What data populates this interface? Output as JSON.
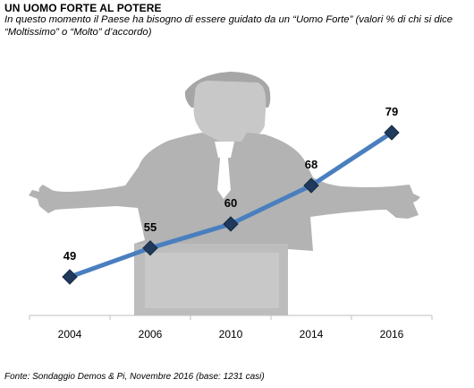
{
  "header": {
    "title": "UN UOMO FORTE AL POTERE",
    "subtitle": "In questo momento il Paese ha bisogno di essere guidato da un “Uomo Forte” (valori % di chi si dice “Moltissimo” o “Molto” d’accordo)"
  },
  "footer": {
    "source": "Fonte: Sondaggio Demos & Pi, Novembre 2016 (base: 1231 casi)"
  },
  "chart_data": {
    "type": "line",
    "title": "UN UOMO FORTE AL POTERE",
    "xlabel": "",
    "ylabel": "",
    "categories": [
      "2004",
      "2006",
      "2010",
      "2014",
      "2016"
    ],
    "series": [
      {
        "values": [
          49,
          55,
          60,
          68,
          79
        ]
      }
    ],
    "ylim": [
      40,
      85
    ],
    "grid": false,
    "data_labels": true,
    "colors": {
      "line": "#4a7fbf",
      "marker": "#1f3a5c",
      "illustration": "#b3b3b3"
    }
  }
}
